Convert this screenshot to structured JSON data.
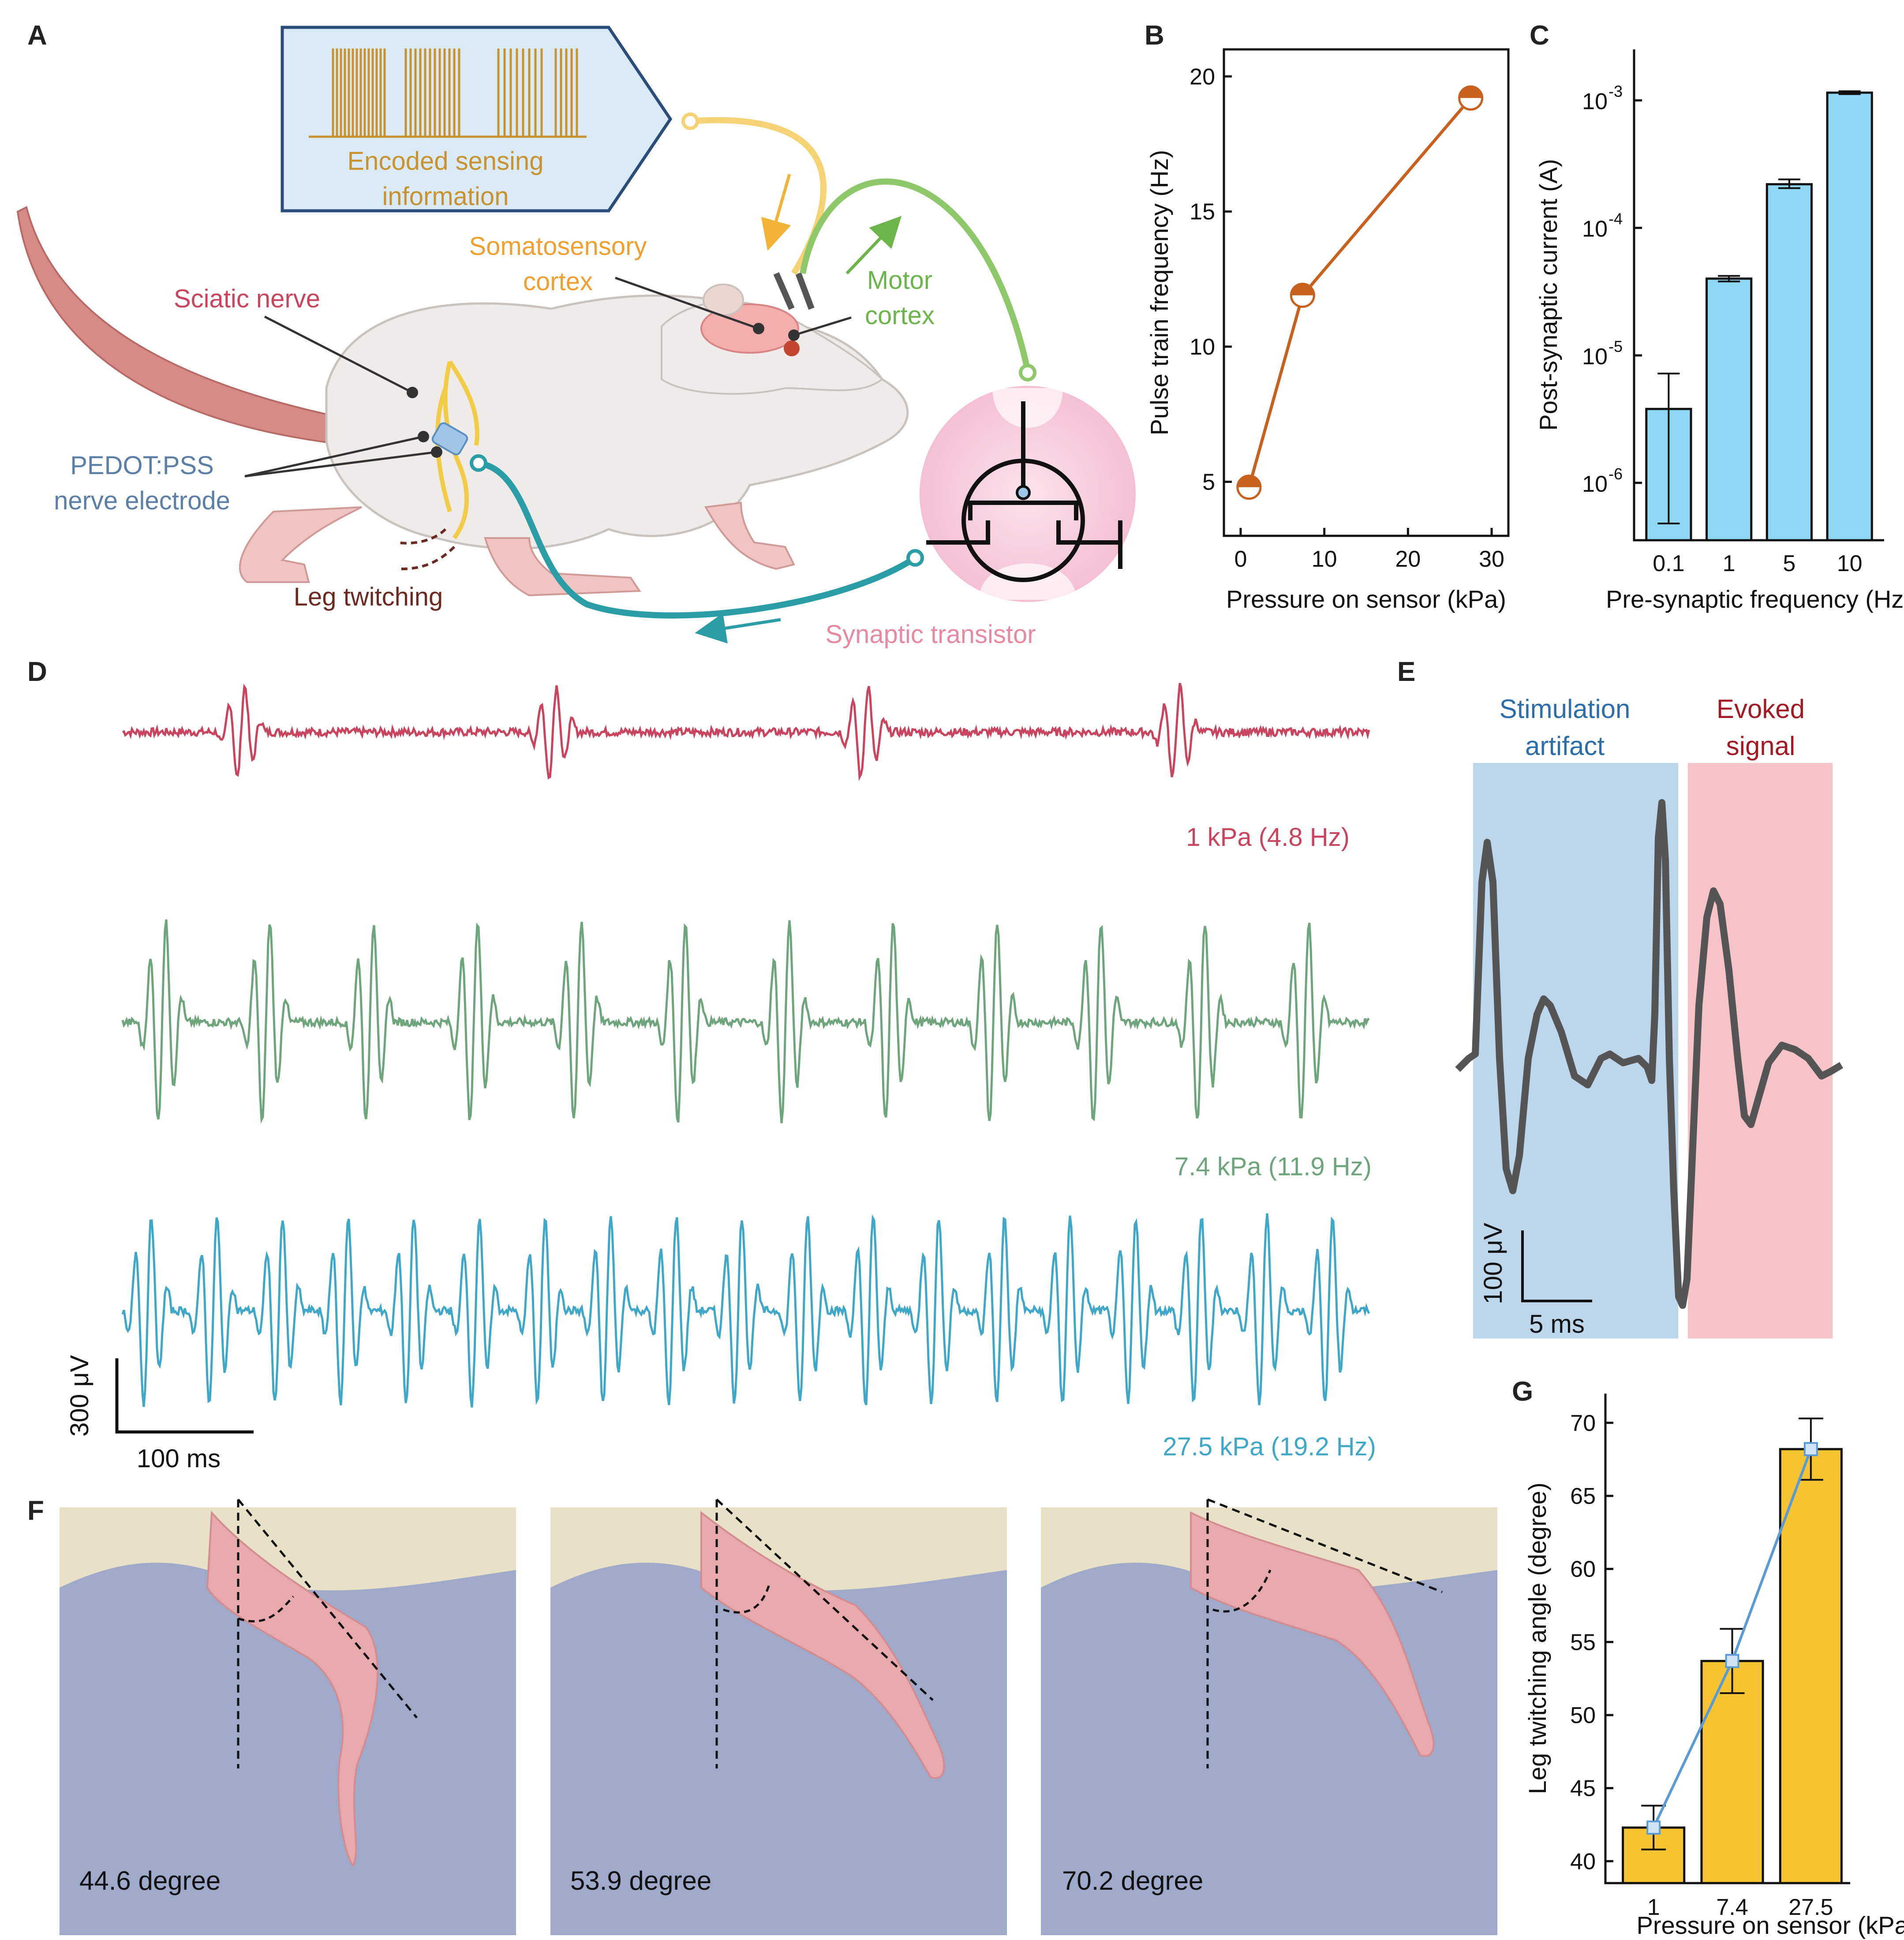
{
  "panels": {
    "a": "A",
    "b": "B",
    "c": "C",
    "d": "D",
    "e": "E",
    "f": "F",
    "g": "G"
  },
  "colors": {
    "orange_series": "#c8601e",
    "sky_bar": "#8fd8f5",
    "gold_bar": "#f5c430",
    "trace_red": "#c9445f",
    "trace_green": "#6fa57c",
    "trace_blue": "#3fa7c7",
    "stim_bg": "#bcd6ec",
    "evoked_bg": "#f6c3c9",
    "line_blue": "#5b9bd5"
  },
  "illustration": {
    "encoded_line1": "Encoded sensing",
    "encoded_line2": "information",
    "somatosensory_line1": "Somatosensory",
    "somatosensory_line2": "cortex",
    "motor_line1": "Motor",
    "motor_line2": "cortex",
    "sciatic": "Sciatic nerve",
    "pedot_line1": "PEDOT:PSS",
    "pedot_line2": "nerve electrode",
    "leg": "Leg twitching",
    "synaptic": "Synaptic transistor"
  },
  "chart_data": [
    {
      "panel": "B",
      "type": "line",
      "xlabel": "Pressure on sensor (kPa)",
      "ylabel": "Pulse train frequency (Hz)",
      "x": [
        1,
        7.4,
        27.5
      ],
      "y": [
        4.8,
        11.9,
        19.2
      ],
      "xlim": [
        -2,
        32
      ],
      "ylim": [
        3,
        21
      ],
      "xticks": [
        0,
        10,
        20,
        30
      ],
      "yticks": [
        5,
        10,
        15,
        20
      ],
      "xtick_labels": [
        "0",
        "10",
        "20",
        "30"
      ],
      "ytick_labels": [
        "5",
        "10",
        "15",
        "20"
      ]
    },
    {
      "panel": "C",
      "type": "bar",
      "yscale": "log",
      "xlabel": "Pre-synaptic frequency (Hz)",
      "ylabel": "Post-synaptic current (A)",
      "categories": [
        "0.1",
        "1",
        "5",
        "10"
      ],
      "values": [
        3.8e-06,
        4e-05,
        0.00022,
        0.00115
      ],
      "err_low": [
        4.8e-07,
        3.8e-05,
        0.000205,
        0.00112
      ],
      "err_high": [
        7.2e-06,
        4.2e-05,
        0.00024,
        0.00118
      ],
      "ylim_exp": [
        -6.45,
        -2.6
      ],
      "yticks_exp": [
        -6,
        -5,
        -4,
        -3
      ],
      "ytick_base": "10",
      "ytick_exps": [
        "-6",
        "-5",
        "-4",
        "-3"
      ]
    },
    {
      "panel": "G",
      "type": "bar",
      "xlabel": "Pressure on sensor (kPa)",
      "ylabel": "Leg twitching angle (degree)",
      "categories": [
        "1",
        "7.4",
        "27.5"
      ],
      "values": [
        42.3,
        53.7,
        68.2
      ],
      "err_low": [
        40.8,
        51.5,
        66.1
      ],
      "err_high": [
        43.8,
        55.9,
        70.3
      ],
      "line_values": [
        42.3,
        53.7,
        68.2
      ],
      "ylim": [
        38.5,
        72
      ],
      "yticks": [
        40,
        45,
        50,
        55,
        60,
        65,
        70
      ],
      "ytick_labels": [
        "40",
        "45",
        "50",
        "55",
        "60",
        "65",
        "70"
      ]
    }
  ],
  "panel_d": {
    "traces": [
      {
        "label": "1 kPa (4.8 Hz)",
        "spikes": 4
      },
      {
        "label": "7.4 kPa (11.9 Hz)",
        "spikes": 12
      },
      {
        "label": "27.5 kPa (19.2 Hz)",
        "spikes": 19
      }
    ],
    "scale_y": "300 μV",
    "scale_x": "100 ms"
  },
  "panel_e": {
    "stim_line1": "Stimulation",
    "stim_line2": "artifact",
    "evoked_line1": "Evoked",
    "evoked_line2": "signal",
    "scale_y": "100 μV",
    "scale_x": "5 ms"
  },
  "panel_f": {
    "photos": [
      "44.6 degree",
      "53.9 degree",
      "70.2 degree"
    ]
  }
}
